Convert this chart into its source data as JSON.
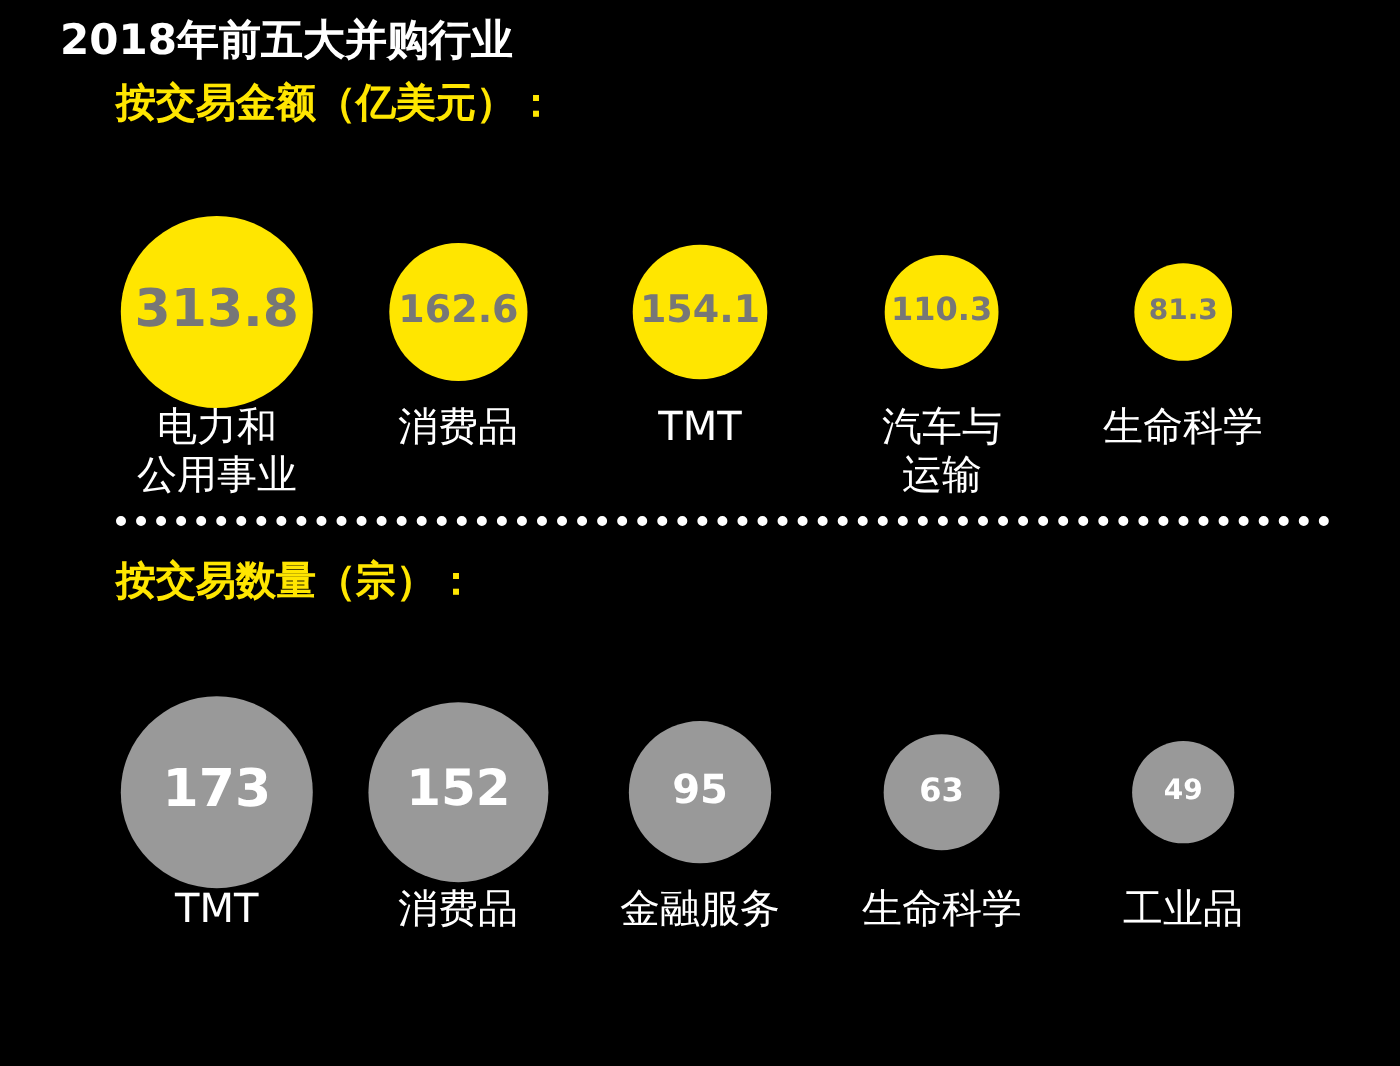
{
  "chart_data": [
    {
      "type": "other",
      "title": "2018年前五大并购行业",
      "subtitle": "按交易金额（亿美元）：",
      "categories": [
        "电力和公用事业",
        "消费品",
        "TMT",
        "汽车与运输",
        "生命科学"
      ],
      "values": [
        313.8,
        162.6,
        154.1,
        110.3,
        81.3
      ],
      "color": "#ffe600",
      "data_labels": true,
      "legend": false
    },
    {
      "type": "other",
      "title": "按交易数量（宗）：",
      "categories": [
        "TMT",
        "消费品",
        "金融服务",
        "生命科学",
        "工业品"
      ],
      "values": [
        173,
        152,
        95,
        63,
        49
      ],
      "color": "#999999",
      "data_labels": true,
      "legend": false
    }
  ]
}
